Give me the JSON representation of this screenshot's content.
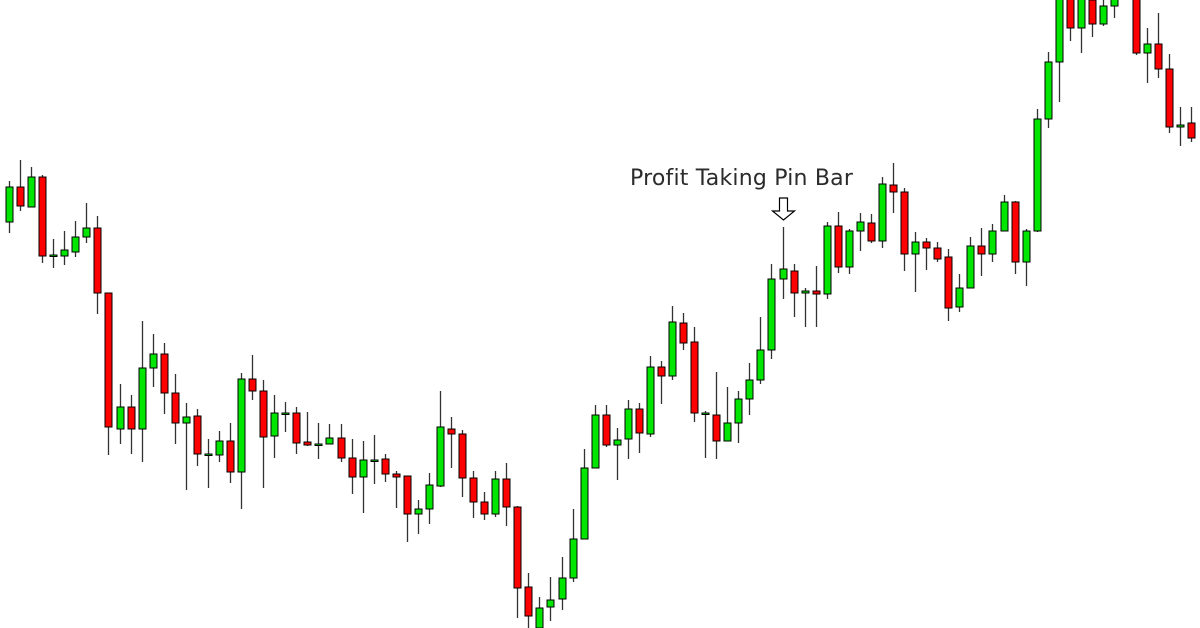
{
  "chart_data": {
    "type": "candlestick",
    "title": "",
    "xlabel": "",
    "ylabel": "",
    "ylim": [
      0,
      628
    ],
    "grid": false,
    "legend": "none",
    "axes_visible": false,
    "colors": {
      "bullish": "#00e600",
      "bearish": "#ff0000",
      "outline": "#000000",
      "wick": "#333333",
      "background": "#ffffff"
    },
    "ohlc_order": [
      "open",
      "high",
      "low",
      "close"
    ],
    "candles": [
      [
        406,
        447,
        395,
        441
      ],
      [
        441,
        468,
        417,
        422
      ],
      [
        421,
        461,
        421,
        451
      ],
      [
        451,
        453,
        365,
        372
      ],
      [
        373,
        389,
        360,
        373
      ],
      [
        372,
        397,
        363,
        378
      ],
      [
        376,
        407,
        371,
        391
      ],
      [
        391,
        425,
        385,
        400
      ],
      [
        400,
        412,
        314,
        335
      ],
      [
        335,
        335,
        173,
        201
      ],
      [
        199,
        244,
        184,
        221
      ],
      [
        221,
        233,
        174,
        199
      ],
      [
        199,
        307,
        166,
        260
      ],
      [
        260,
        294,
        241,
        274
      ],
      [
        274,
        285,
        214,
        235
      ],
      [
        235,
        254,
        184,
        205
      ],
      [
        205,
        225,
        138,
        211
      ],
      [
        212,
        219,
        162,
        174
      ],
      [
        174,
        189,
        140,
        174
      ],
      [
        173,
        197,
        166,
        187
      ],
      [
        187,
        205,
        145,
        156
      ],
      [
        156,
        255,
        119,
        249
      ],
      [
        249,
        273,
        228,
        237
      ],
      [
        237,
        248,
        140,
        191
      ],
      [
        192,
        233,
        170,
        215
      ],
      [
        215,
        226,
        196,
        215
      ],
      [
        215,
        221,
        174,
        185
      ],
      [
        186,
        216,
        182,
        183
      ],
      [
        184,
        205,
        169,
        184
      ],
      [
        184,
        204,
        184,
        190
      ],
      [
        190,
        204,
        166,
        170
      ],
      [
        170,
        189,
        134,
        151
      ],
      [
        151,
        187,
        115,
        168
      ],
      [
        168,
        193,
        144,
        168
      ],
      [
        169,
        174,
        146,
        154
      ],
      [
        154,
        157,
        120,
        151
      ],
      [
        152,
        152,
        86,
        114
      ],
      [
        114,
        128,
        94,
        119
      ],
      [
        119,
        155,
        104,
        143
      ],
      [
        142,
        237,
        141,
        201
      ],
      [
        199,
        211,
        160,
        194
      ],
      [
        194,
        198,
        131,
        150
      ],
      [
        150,
        157,
        110,
        126
      ],
      [
        126,
        136,
        108,
        114
      ],
      [
        114,
        157,
        111,
        149
      ],
      [
        149,
        165,
        102,
        121
      ],
      [
        121,
        122,
        10,
        40
      ],
      [
        41,
        55,
        0,
        12
      ],
      [
        0,
        31,
        0,
        20
      ],
      [
        21,
        51,
        7,
        28
      ],
      [
        29,
        71,
        18,
        50
      ],
      [
        50,
        119,
        46,
        89
      ],
      [
        89,
        179,
        89,
        160
      ],
      [
        160,
        223,
        160,
        213
      ],
      [
        213,
        223,
        181,
        183
      ],
      [
        183,
        200,
        148,
        188
      ],
      [
        189,
        228,
        169,
        219
      ],
      [
        219,
        225,
        175,
        195
      ],
      [
        194,
        272,
        191,
        261
      ],
      [
        261,
        267,
        224,
        252
      ],
      [
        252,
        322,
        248,
        306
      ],
      [
        305,
        315,
        278,
        285
      ],
      [
        286,
        301,
        206,
        215
      ],
      [
        215,
        217,
        170,
        215
      ],
      [
        213,
        256,
        169,
        187
      ],
      [
        187,
        241,
        187,
        205
      ],
      [
        205,
        237,
        185,
        229
      ],
      [
        229,
        265,
        213,
        248
      ],
      [
        248,
        311,
        244,
        278
      ],
      [
        278,
        364,
        269,
        349
      ],
      [
        349,
        401,
        329,
        359
      ],
      [
        357,
        364,
        311,
        335
      ],
      [
        335,
        340,
        301,
        337
      ],
      [
        337,
        362,
        301,
        334
      ],
      [
        334,
        406,
        329,
        402
      ],
      [
        402,
        416,
        355,
        361
      ],
      [
        361,
        399,
        354,
        397
      ],
      [
        397,
        415,
        377,
        406
      ],
      [
        405,
        414,
        385,
        387
      ],
      [
        387,
        451,
        380,
        444
      ],
      [
        443,
        465,
        415,
        436
      ],
      [
        436,
        440,
        357,
        374
      ],
      [
        374,
        396,
        336,
        386
      ],
      [
        386,
        390,
        358,
        380
      ],
      [
        380,
        386,
        366,
        369
      ],
      [
        371,
        379,
        307,
        320
      ],
      [
        321,
        354,
        316,
        340
      ],
      [
        340,
        391,
        340,
        382
      ],
      [
        382,
        400,
        352,
        374
      ],
      [
        374,
        404,
        366,
        397
      ],
      [
        397,
        433,
        397,
        426
      ],
      [
        426,
        427,
        354,
        366
      ],
      [
        366,
        399,
        342,
        397
      ],
      [
        397,
        519,
        396,
        509
      ],
      [
        509,
        576,
        500,
        566
      ],
      [
        566,
        638,
        526,
        633
      ],
      [
        633,
        638,
        587,
        600
      ],
      [
        600,
        636,
        575,
        631
      ],
      [
        628,
        633,
        591,
        604
      ],
      [
        604,
        628,
        602,
        622
      ],
      [
        622,
        633,
        610,
        630
      ],
      null,
      [
        633,
        638,
        573,
        575
      ],
      [
        575,
        600,
        545,
        584
      ],
      [
        584,
        615,
        550,
        559
      ],
      [
        559,
        574,
        495,
        501
      ],
      [
        501,
        521,
        482,
        503
      ],
      [
        505,
        521,
        486,
        490
      ]
    ],
    "annotations": [
      {
        "text": "Profit Taking Pin Bar",
        "candle_index": 70,
        "marker": "hollow-down-arrow"
      }
    ]
  }
}
